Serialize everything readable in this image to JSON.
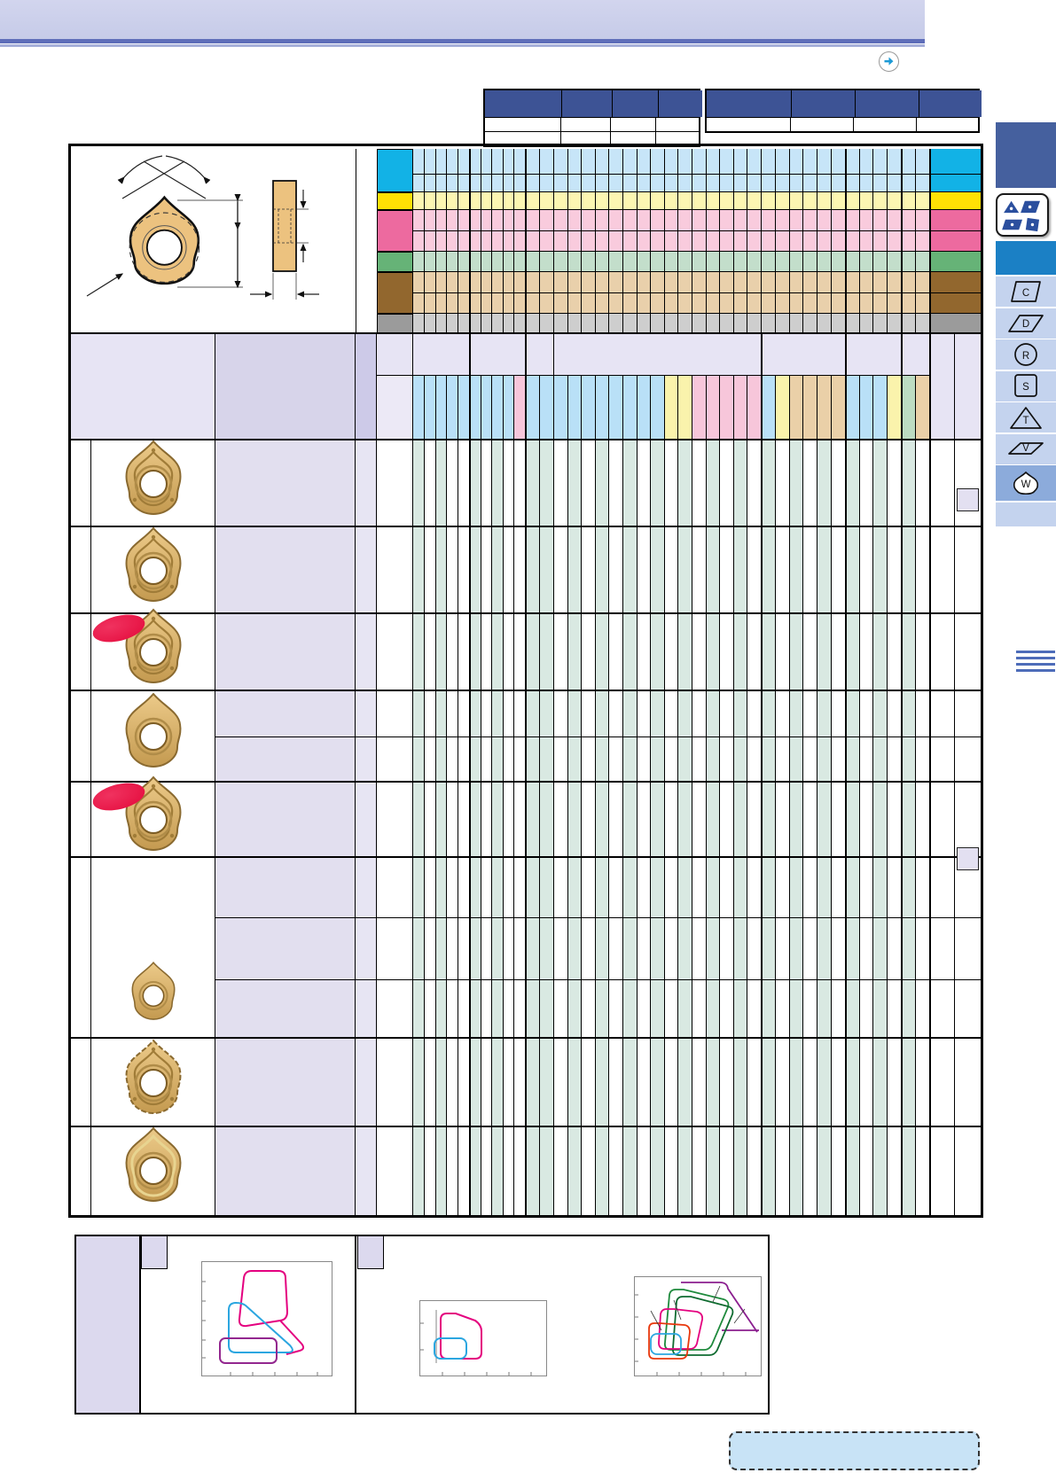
{
  "banner": {
    "color_top": "#d2d5ee",
    "color_bottom": "#c6cbe8",
    "line_dark": "#5f6eb9",
    "line_light": "#a7b0da"
  },
  "nav_arrow": {
    "icon": "forward-arrow-icon",
    "color": "#1d9ad6"
  },
  "mini_tables": {
    "header_color": "#3d5395",
    "table_a": {
      "columns": 4,
      "data_rows": 2
    },
    "table_b": {
      "columns": 4,
      "data_rows": 1
    }
  },
  "insert_diagram": {
    "icons": [
      "trigon-front-view",
      "angle-dimension-arrows",
      "height-dimension-arrow",
      "corner-radius-arrow",
      "side-view",
      "thickness-dimension-arrows",
      "width-dimension-arrows"
    ],
    "insert_fill": "#ecc27f"
  },
  "palette": {
    "teal_stripe": "#d9e9e2",
    "lavender_body": "#e2dfef",
    "lavender_header_light": "#e7e4f4",
    "lavender_header_med": "#d7d4ea",
    "lavender_narrow_header": "#cdcae8",
    "lavender_narrow_body": "#e7e5f3",
    "strip_row_lavender": "#ece9f6",
    "strips": {
      "b": "#b9e0f7",
      "p": "#f7c6da",
      "y": "#faf3ac",
      "t": "#ead0a8",
      "g": "#bcdcc2"
    }
  },
  "grade_bands": [
    {
      "name": "cyan",
      "rows": 2,
      "solid": "#12b2e6",
      "tint": "#c7e5f8"
    },
    {
      "name": "yellow",
      "rows": 1,
      "solid": "#ffe105",
      "tint": "#fcf6b2"
    },
    {
      "name": "pink",
      "rows": 2,
      "solid": "#ed6a9f",
      "tint": "#f9cbdd"
    },
    {
      "name": "green",
      "rows": 1,
      "solid": "#66b377",
      "tint": "#c3decb"
    },
    {
      "name": "brown",
      "rows": 2,
      "solid": "#92672e",
      "tint": "#e9d0ab"
    },
    {
      "name": "gray",
      "rows": 1,
      "solid": "#9b9b9b",
      "tint": "#cecece"
    }
  ],
  "columns": {
    "groups": [
      {
        "count": 5,
        "width": 12.8
      },
      {
        "count": 5,
        "width": 12.6
      },
      {
        "count": 2,
        "width": 16.0
      },
      {
        "count": 15,
        "width": 15.6
      },
      {
        "count": 6,
        "width": 15.83
      },
      {
        "count": 4,
        "width": 15.75
      },
      {
        "count": 2,
        "width": 16.0
      }
    ],
    "strip_colors": [
      "b",
      "b",
      "b",
      "b",
      "b",
      "b",
      "b",
      "b",
      "b",
      "p",
      "b",
      "b",
      "b",
      "b",
      "b",
      "b",
      "b",
      "b",
      "b",
      "b",
      "y",
      "y",
      "p",
      "p",
      "p",
      "p",
      "p",
      "b",
      "y",
      "t",
      "t",
      "t",
      "t",
      "b",
      "b",
      "b",
      "y",
      "g",
      "t"
    ],
    "body_stripes": [
      1,
      0,
      1,
      0,
      0,
      1,
      0,
      1,
      0,
      0,
      1,
      1,
      0,
      1,
      0,
      1,
      0,
      1,
      0,
      1,
      0,
      1,
      0,
      1,
      0,
      1,
      0,
      1,
      0,
      1,
      0,
      1,
      0,
      1,
      0,
      1,
      0,
      1,
      0
    ]
  },
  "rows": [
    {
      "badge": false,
      "variant": "molded"
    },
    {
      "badge": false,
      "variant": "molded"
    },
    {
      "badge": true,
      "variant": "molded"
    },
    {
      "badge": false,
      "variant": "smooth"
    },
    {
      "badge": true,
      "variant": "molded"
    },
    {
      "badge": false,
      "variant": "small"
    },
    {
      "badge": false,
      "variant": "serrated"
    },
    {
      "badge": false,
      "variant": "ringed"
    }
  ],
  "badge": {
    "color": "#e40a3c",
    "name": "new-badge"
  },
  "page_ref_squares": {
    "count": 2,
    "fill": "#e3e0f1"
  },
  "sidebar": {
    "block_navy": "#45609e",
    "block_blue": "#1b80c5",
    "box_bg": "#c4d3ee",
    "box_selected_bg": "#8cabdb",
    "shapes_icon": "insert-shapes-icon",
    "items": [
      {
        "letter": "C",
        "shape": "parallelogram-80-icon",
        "selected": false
      },
      {
        "letter": "D",
        "shape": "parallelogram-55-icon",
        "selected": false
      },
      {
        "letter": "R",
        "shape": "round-icon",
        "selected": false
      },
      {
        "letter": "S",
        "shape": "square-icon",
        "selected": false
      },
      {
        "letter": "T",
        "shape": "triangle-icon",
        "selected": false
      },
      {
        "letter": "V",
        "shape": "parallelogram-35-icon",
        "selected": false
      },
      {
        "letter": "W",
        "shape": "trigon-icon",
        "selected": true
      },
      {
        "letter": "",
        "shape": "blank",
        "selected": false
      }
    ],
    "menu_icon_color": "#4d6cb9"
  },
  "charts": [
    {
      "name": "application-range-chart-1",
      "outline_colors": [
        "#e4007f",
        "#2ba6e0",
        "#93278f"
      ]
    },
    {
      "name": "application-range-chart-2",
      "outline_colors": [
        "#e4007f",
        "#2ba6e0"
      ]
    },
    {
      "name": "application-range-chart-3",
      "outline_colors": [
        "#8b1f8f",
        "#1e8a3c",
        "#0f6b30",
        "#e4007f",
        "#e8380d",
        "#2ba6e0"
      ]
    }
  ],
  "note_box": {
    "fill": "#c8e3f6",
    "border": "#333333"
  }
}
